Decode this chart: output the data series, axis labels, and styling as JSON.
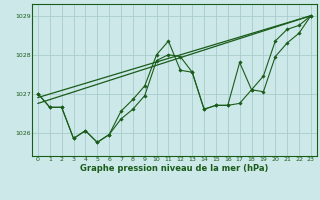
{
  "background_color": "#cce8e8",
  "grid_color": "#aacccc",
  "line_color": "#1a5c1a",
  "title": "Graphe pression niveau de la mer (hPa)",
  "xlim": [
    -0.5,
    23.5
  ],
  "ylim": [
    1025.4,
    1029.3
  ],
  "yticks": [
    1026,
    1027,
    1028,
    1029
  ],
  "xticks": [
    0,
    1,
    2,
    3,
    4,
    5,
    6,
    7,
    8,
    9,
    10,
    11,
    12,
    13,
    14,
    15,
    16,
    17,
    18,
    19,
    20,
    21,
    22,
    23
  ],
  "series1_x": [
    0,
    1,
    2,
    3,
    4,
    5,
    6,
    7,
    8,
    9,
    10,
    11,
    12,
    13,
    14,
    15,
    16,
    17,
    18,
    19,
    20,
    21,
    22,
    23
  ],
  "series1_y": [
    1027.0,
    1026.65,
    1026.65,
    1025.85,
    1026.05,
    1025.75,
    1025.95,
    1026.35,
    1026.6,
    1026.95,
    1027.85,
    1028.0,
    1027.95,
    1027.55,
    1026.6,
    1026.7,
    1026.7,
    1026.75,
    1027.1,
    1027.05,
    1027.95,
    1028.3,
    1028.55,
    1029.0
  ],
  "series2_x": [
    0,
    1,
    2,
    3,
    4,
    5,
    6,
    7,
    8,
    9,
    10,
    11,
    12,
    13,
    14,
    15,
    16,
    17,
    18,
    19,
    20,
    21,
    22,
    23
  ],
  "series2_y": [
    1027.0,
    1026.65,
    1026.65,
    1025.85,
    1026.05,
    1025.75,
    1025.95,
    1026.55,
    1026.85,
    1027.2,
    1028.0,
    1028.35,
    1027.6,
    1027.55,
    1026.6,
    1026.7,
    1026.7,
    1027.8,
    1027.1,
    1027.45,
    1028.35,
    1028.65,
    1028.75,
    1029.0
  ],
  "trend1_x": [
    0,
    23
  ],
  "trend1_y": [
    1026.75,
    1029.0
  ],
  "trend2_x": [
    0,
    23
  ],
  "trend2_y": [
    1026.9,
    1029.0
  ]
}
